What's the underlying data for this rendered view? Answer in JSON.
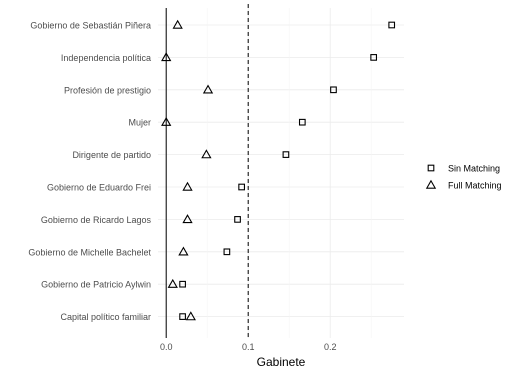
{
  "chart_data": {
    "type": "scatter",
    "title": "",
    "xlabel": "Gabinete",
    "ylabel": "",
    "xlim": [
      -0.01,
      0.29
    ],
    "x_ticks": [
      0.0,
      0.1,
      0.2
    ],
    "x_tick_labels": [
      "0.0",
      "0.1",
      "0.2"
    ],
    "reference_line": {
      "x": 0.1,
      "style": "dashed"
    },
    "grid": true,
    "legend_position": "right",
    "categories": [
      "Gobierno de Sebastián Piñera",
      "Independencia política",
      "Profesión de prestigio",
      "Mujer",
      "Dirigente de partido",
      "Gobierno de Eduardo Frei",
      "Gobierno de Ricardo Lagos",
      "Gobierno de Michelle Bachelet",
      "Gobierno de Patricio Aylwin",
      "Capital político familiar"
    ],
    "series": [
      {
        "name": "Sin Matching",
        "marker": "square",
        "values": [
          0.275,
          0.253,
          0.204,
          0.166,
          0.146,
          0.092,
          0.087,
          0.074,
          0.02,
          0.02
        ]
      },
      {
        "name": "Full Matching",
        "marker": "triangle",
        "values": [
          0.014,
          0.0,
          0.051,
          0.0,
          0.049,
          0.026,
          0.026,
          0.021,
          0.008,
          0.03
        ]
      }
    ]
  }
}
